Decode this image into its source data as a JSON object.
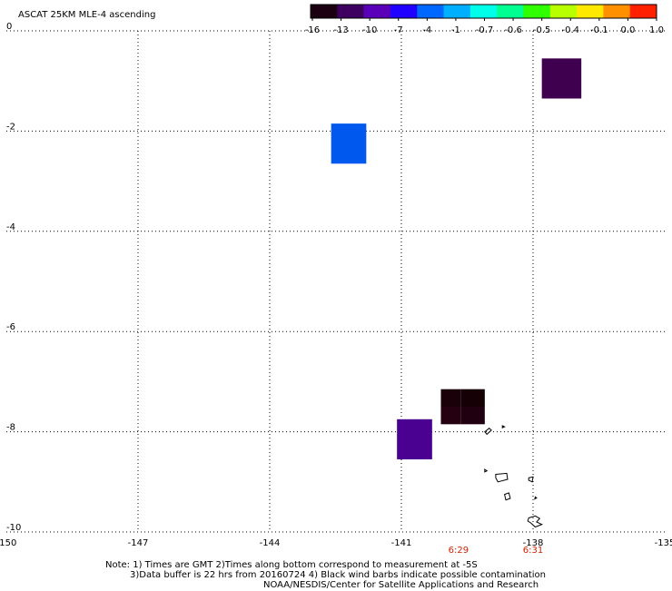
{
  "title": "ASCAT 25KM MLE-4 ascending",
  "colorbar": {
    "labels": [
      "-16",
      "-13",
      "-10",
      "-7",
      "-4",
      "-1",
      "-0.7",
      "-0.6",
      "-0.5",
      "-0.4",
      "-0.1",
      "0.0",
      "1.0"
    ],
    "colors": [
      "#1a0010",
      "#3d0060",
      "#5a00b8",
      "#2000ff",
      "#0068ff",
      "#00b0ff",
      "#00ffe8",
      "#00ff90",
      "#30ff00",
      "#b8ff00",
      "#ffe800",
      "#ff9000",
      "#ff2000"
    ]
  },
  "chart_data": {
    "type": "heatmap",
    "xlim": [
      -150,
      -135
    ],
    "ylim": [
      -10,
      0
    ],
    "x_ticks": [
      -150,
      -147,
      -144,
      -141,
      -138,
      -135
    ],
    "y_ticks": [
      0,
      -2,
      -4,
      -6,
      -8,
      -10
    ],
    "x_tick_labels": [
      "-150",
      "-147",
      "-144",
      "-141",
      "-138",
      "-135"
    ],
    "y_tick_labels": [
      "0",
      "-2",
      "-4",
      "-6",
      "-8",
      "-10"
    ],
    "grid": true,
    "cells": [
      {
        "x0": -137.8,
        "x1": -136.9,
        "y0": -0.55,
        "y1": -1.35,
        "color": "#400050",
        "value_class": "-13"
      },
      {
        "x0": -142.6,
        "x1": -141.8,
        "y0": -1.85,
        "y1": -2.65,
        "color": "#0058ee",
        "value_class": "-4"
      },
      {
        "x0": -141.1,
        "x1": -140.3,
        "y0": -7.75,
        "y1": -8.55,
        "color": "#4a0090",
        "value_class": "-10"
      },
      {
        "x0": -140.1,
        "x1": -139.65,
        "y0": -7.15,
        "y1": -7.5,
        "color": "#1a0008",
        "value_class": "-16"
      },
      {
        "x0": -139.65,
        "x1": -139.1,
        "y0": -7.15,
        "y1": -7.5,
        "color": "#150005",
        "value_class": "-16"
      },
      {
        "x0": -140.1,
        "x1": -139.65,
        "y0": -7.5,
        "y1": -7.85,
        "color": "#250010",
        "value_class": "-16"
      },
      {
        "x0": -139.65,
        "x1": -139.1,
        "y0": -7.5,
        "y1": -7.85,
        "color": "#200010",
        "value_class": "-16"
      }
    ],
    "time_labels": [
      {
        "x": -139.7,
        "text": "6:29"
      },
      {
        "x": -138.0,
        "text": "6:31"
      }
    ]
  },
  "islands": [
    {
      "pts": [
        [
          -139.1,
          -8.0
        ],
        [
          -139.0,
          -7.93
        ],
        [
          -138.95,
          -7.97
        ],
        [
          -139.05,
          -8.05
        ]
      ]
    },
    {
      "pts": [
        [
          -138.7,
          -7.88
        ],
        [
          -138.65,
          -7.9
        ],
        [
          -138.7,
          -7.92
        ]
      ]
    },
    {
      "pts": [
        [
          -139.1,
          -8.75
        ],
        [
          -139.05,
          -8.78
        ],
        [
          -139.1,
          -8.8
        ]
      ]
    },
    {
      "pts": [
        [
          -138.85,
          -8.85
        ],
        [
          -138.6,
          -8.83
        ],
        [
          -138.58,
          -8.95
        ],
        [
          -138.8,
          -9.0
        ],
        [
          -138.85,
          -8.92
        ]
      ]
    },
    {
      "pts": [
        [
          -138.1,
          -8.92
        ],
        [
          -138.0,
          -8.9
        ],
        [
          -138.02,
          -9.0
        ],
        [
          -138.1,
          -8.97
        ]
      ]
    },
    {
      "pts": [
        [
          -138.65,
          -9.25
        ],
        [
          -138.55,
          -9.22
        ],
        [
          -138.52,
          -9.33
        ],
        [
          -138.62,
          -9.36
        ]
      ]
    },
    {
      "pts": [
        [
          -137.95,
          -9.3
        ],
        [
          -137.92,
          -9.32
        ],
        [
          -137.96,
          -9.34
        ]
      ]
    },
    {
      "pts": [
        [
          -138.1,
          -9.72
        ],
        [
          -137.95,
          -9.68
        ],
        [
          -137.85,
          -9.73
        ],
        [
          -137.92,
          -9.8
        ],
        [
          -137.8,
          -9.85
        ],
        [
          -137.95,
          -9.9
        ],
        [
          -138.05,
          -9.82
        ],
        [
          -138.12,
          -9.78
        ]
      ]
    }
  ],
  "notes": {
    "line1": "Note: 1) Times are GMT 2)Times along bottom correspond to measurement at -5S",
    "line2": "3)Data buffer is 22 hrs from 20160724 4) Black wind barbs indicate possible contamination",
    "line3": "NOAA/NESDIS/Center for Satellite Applications and Research"
  }
}
